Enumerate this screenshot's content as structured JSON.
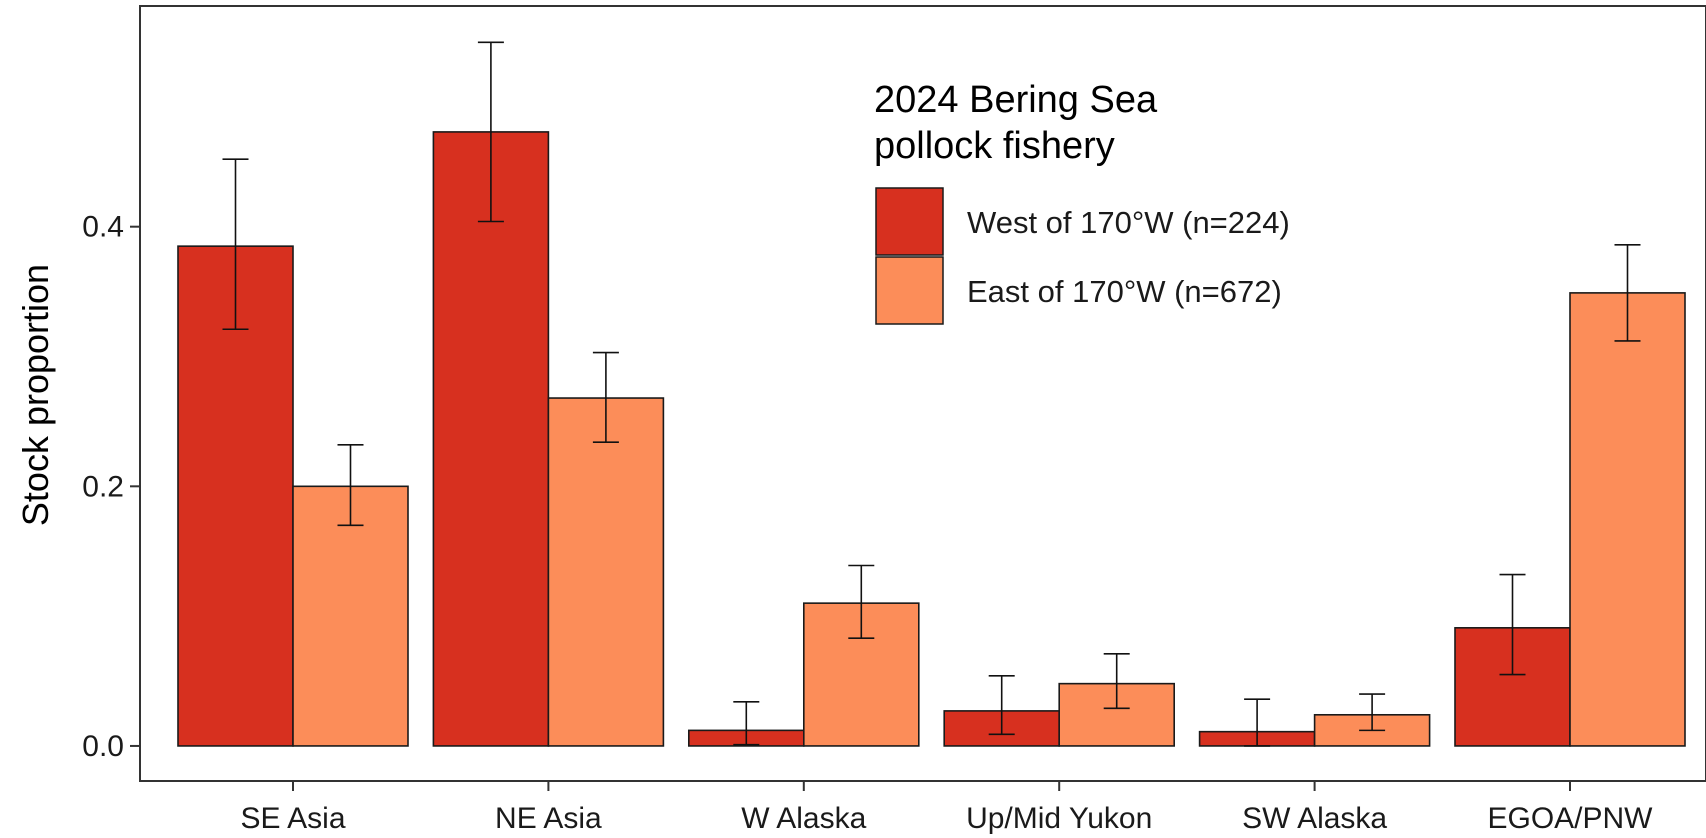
{
  "chart_data": {
    "type": "bar",
    "title": "",
    "xlabel": "",
    "ylabel": "Stock proportion",
    "ylim": [
      -0.027,
      0.57
    ],
    "yticks": [
      0.0,
      0.2,
      0.4
    ],
    "ytick_labels": [
      "0.0",
      "0.2",
      "0.4"
    ],
    "grid": false,
    "categories": [
      "SE Asia",
      "NE Asia",
      "W Alaska",
      "Up/Mid Yukon",
      "SW Alaska",
      "EGOA/PNW"
    ],
    "legend": {
      "title_lines": [
        "2024 Bering Sea",
        "pollock fishery"
      ],
      "position": "top-right"
    },
    "series": [
      {
        "name": "West of 170°W (n=224)",
        "color": "#D7301F",
        "values": [
          0.385,
          0.473,
          0.012,
          0.027,
          0.011,
          0.091
        ],
        "lower": [
          0.321,
          0.404,
          0.001,
          0.009,
          0.0,
          0.055
        ],
        "upper": [
          0.452,
          0.542,
          0.034,
          0.054,
          0.036,
          0.132
        ]
      },
      {
        "name": "East of 170°W (n=672)",
        "color": "#FC8D59",
        "values": [
          0.2,
          0.268,
          0.11,
          0.048,
          0.024,
          0.349
        ],
        "lower": [
          0.17,
          0.234,
          0.083,
          0.029,
          0.012,
          0.312
        ],
        "upper": [
          0.232,
          0.303,
          0.139,
          0.071,
          0.04,
          0.386
        ]
      }
    ]
  }
}
